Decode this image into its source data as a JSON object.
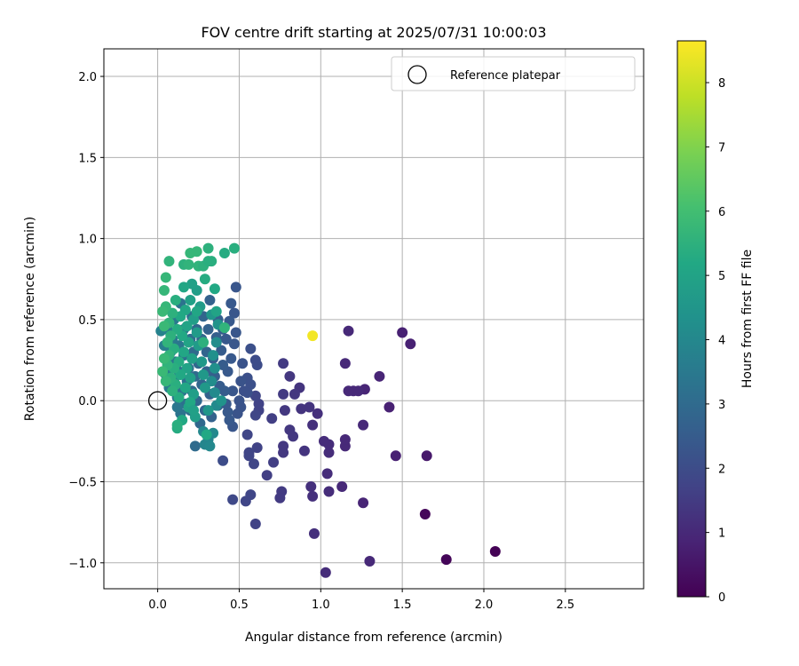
{
  "chart_data": {
    "type": "scatter",
    "title": "FOV centre drift starting at 2025/07/31 10:00:03",
    "xlabel": "Angular distance from reference (arcmin)",
    "ylabel": "Rotation from reference (arcmin)",
    "colorbar_label": "Hours from first FF file",
    "colormap": "viridis",
    "xlim": [
      -0.33,
      2.98
    ],
    "ylim": [
      -1.16,
      2.17
    ],
    "clim": [
      0,
      8.65
    ],
    "xticks": [
      "0.0",
      "0.5",
      "1.0",
      "1.5",
      "2.0",
      "2.5"
    ],
    "yticks": [
      "−1.0",
      "−0.5",
      "0.0",
      "0.5",
      "1.0",
      "1.5",
      "2.0"
    ],
    "cticks": [
      "0",
      "1",
      "2",
      "3",
      "4",
      "5",
      "6",
      "7",
      "8"
    ],
    "grid": true,
    "legend": {
      "placement": "top-right",
      "entries": [
        "Reference platepar"
      ]
    },
    "reference_point": {
      "x": 0.0,
      "y": 0.0
    },
    "points": [
      {
        "x": 2.07,
        "y": -0.93,
        "h": 0.02
      },
      {
        "x": 1.77,
        "y": -0.98,
        "h": 0.1
      },
      {
        "x": 1.64,
        "y": -0.7,
        "h": 0.15
      },
      {
        "x": 1.65,
        "y": -0.34,
        "h": 0.6
      },
      {
        "x": 1.5,
        "y": 0.42,
        "h": 0.8
      },
      {
        "x": 1.55,
        "y": 0.35,
        "h": 0.8
      },
      {
        "x": 1.46,
        "y": -0.34,
        "h": 0.8
      },
      {
        "x": 1.42,
        "y": -0.04,
        "h": 0.8
      },
      {
        "x": 1.36,
        "y": 0.15,
        "h": 0.9
      },
      {
        "x": 1.3,
        "y": -0.99,
        "h": 1.0
      },
      {
        "x": 1.27,
        "y": 0.07,
        "h": 0.9
      },
      {
        "x": 1.26,
        "y": -0.63,
        "h": 0.9
      },
      {
        "x": 1.26,
        "y": -0.15,
        "h": 1.0
      },
      {
        "x": 1.23,
        "y": 0.06,
        "h": 1.0
      },
      {
        "x": 1.2,
        "y": 0.06,
        "h": 1.0
      },
      {
        "x": 1.17,
        "y": 0.43,
        "h": 1.0
      },
      {
        "x": 1.17,
        "y": 0.06,
        "h": 1.0
      },
      {
        "x": 1.15,
        "y": 0.23,
        "h": 1.0
      },
      {
        "x": 1.15,
        "y": -0.28,
        "h": 1.0
      },
      {
        "x": 1.15,
        "y": -0.24,
        "h": 1.0
      },
      {
        "x": 1.13,
        "y": -0.53,
        "h": 1.0
      },
      {
        "x": 1.05,
        "y": -0.27,
        "h": 1.1
      },
      {
        "x": 1.05,
        "y": -0.32,
        "h": 1.1
      },
      {
        "x": 1.05,
        "y": -0.56,
        "h": 1.1
      },
      {
        "x": 1.04,
        "y": -0.45,
        "h": 1.1
      },
      {
        "x": 1.03,
        "y": -1.06,
        "h": 1.1
      },
      {
        "x": 1.02,
        "y": -0.25,
        "h": 1.1
      },
      {
        "x": 0.98,
        "y": -0.08,
        "h": 1.2
      },
      {
        "x": 0.96,
        "y": -0.82,
        "h": 1.2
      },
      {
        "x": 0.95,
        "y": -0.59,
        "h": 1.2
      },
      {
        "x": 0.95,
        "y": -0.15,
        "h": 1.2
      },
      {
        "x": 0.94,
        "y": -0.53,
        "h": 1.2
      },
      {
        "x": 0.95,
        "y": 0.4,
        "h": 8.5
      },
      {
        "x": 0.93,
        "y": -0.04,
        "h": 1.3
      },
      {
        "x": 0.9,
        "y": -0.31,
        "h": 1.3
      },
      {
        "x": 0.88,
        "y": -0.05,
        "h": 1.3
      },
      {
        "x": 0.87,
        "y": 0.08,
        "h": 1.3
      },
      {
        "x": 0.84,
        "y": 0.04,
        "h": 1.4
      },
      {
        "x": 0.83,
        "y": -0.22,
        "h": 1.4
      },
      {
        "x": 0.81,
        "y": -0.18,
        "h": 1.4
      },
      {
        "x": 0.81,
        "y": 0.15,
        "h": 1.4
      },
      {
        "x": 0.78,
        "y": -0.06,
        "h": 1.4
      },
      {
        "x": 0.77,
        "y": -0.32,
        "h": 1.4
      },
      {
        "x": 0.77,
        "y": -0.28,
        "h": 1.4
      },
      {
        "x": 0.77,
        "y": 0.04,
        "h": 1.5
      },
      {
        "x": 0.77,
        "y": 0.23,
        "h": 1.5
      },
      {
        "x": 0.76,
        "y": -0.56,
        "h": 1.5
      },
      {
        "x": 0.75,
        "y": -0.6,
        "h": 1.5
      },
      {
        "x": 0.71,
        "y": -0.38,
        "h": 1.6
      },
      {
        "x": 0.7,
        "y": -0.11,
        "h": 1.6
      },
      {
        "x": 0.67,
        "y": -0.46,
        "h": 1.6
      },
      {
        "x": 0.62,
        "y": -0.02,
        "h": 1.7
      },
      {
        "x": 0.62,
        "y": -0.06,
        "h": 1.7
      },
      {
        "x": 0.61,
        "y": -0.29,
        "h": 1.7
      },
      {
        "x": 0.6,
        "y": -0.76,
        "h": 1.7
      },
      {
        "x": 0.6,
        "y": -0.09,
        "h": 1.8
      },
      {
        "x": 0.6,
        "y": 0.03,
        "h": 1.8
      },
      {
        "x": 0.59,
        "y": -0.39,
        "h": 1.8
      },
      {
        "x": 0.57,
        "y": -0.58,
        "h": 1.8
      },
      {
        "x": 0.56,
        "y": -0.32,
        "h": 1.8
      },
      {
        "x": 0.56,
        "y": -0.34,
        "h": 1.8
      },
      {
        "x": 0.55,
        "y": -0.21,
        "h": 1.8
      },
      {
        "x": 0.54,
        "y": -0.62,
        "h": 1.8
      },
      {
        "x": 0.46,
        "y": -0.61,
        "h": 1.9
      },
      {
        "x": 0.4,
        "y": -0.37,
        "h": 2.0
      },
      {
        "x": 0.61,
        "y": 0.22,
        "h": 2.0
      },
      {
        "x": 0.6,
        "y": 0.25,
        "h": 2.0
      },
      {
        "x": 0.57,
        "y": 0.32,
        "h": 2.1
      },
      {
        "x": 0.57,
        "y": 0.1,
        "h": 2.1
      },
      {
        "x": 0.55,
        "y": 0.05,
        "h": 2.1
      },
      {
        "x": 0.55,
        "y": 0.14,
        "h": 2.1
      },
      {
        "x": 0.53,
        "y": 0.06,
        "h": 2.1
      },
      {
        "x": 0.52,
        "y": 0.23,
        "h": 2.2
      },
      {
        "x": 0.51,
        "y": 0.12,
        "h": 2.2
      },
      {
        "x": 0.51,
        "y": -0.04,
        "h": 2.2
      },
      {
        "x": 0.5,
        "y": 0.0,
        "h": 2.2
      },
      {
        "x": 0.49,
        "y": -0.08,
        "h": 2.2
      },
      {
        "x": 0.48,
        "y": 0.7,
        "h": 2.3
      },
      {
        "x": 0.48,
        "y": 0.42,
        "h": 2.3
      },
      {
        "x": 0.47,
        "y": 0.35,
        "h": 2.3
      },
      {
        "x": 0.47,
        "y": 0.54,
        "h": 2.3
      },
      {
        "x": 0.46,
        "y": 0.06,
        "h": 2.3
      },
      {
        "x": 0.46,
        "y": -0.16,
        "h": 2.3
      },
      {
        "x": 0.45,
        "y": 0.6,
        "h": 2.4
      },
      {
        "x": 0.45,
        "y": 0.26,
        "h": 2.4
      },
      {
        "x": 0.44,
        "y": 0.49,
        "h": 2.4
      },
      {
        "x": 0.44,
        "y": -0.12,
        "h": 2.4
      },
      {
        "x": 0.43,
        "y": 0.18,
        "h": 2.4
      },
      {
        "x": 0.43,
        "y": -0.07,
        "h": 2.4
      },
      {
        "x": 0.42,
        "y": 0.38,
        "h": 2.4
      },
      {
        "x": 0.42,
        "y": -0.02,
        "h": 2.4
      },
      {
        "x": 0.41,
        "y": 0.06,
        "h": 2.5
      },
      {
        "x": 0.4,
        "y": 0.44,
        "h": 2.5
      },
      {
        "x": 0.4,
        "y": 0.22,
        "h": 2.5
      },
      {
        "x": 0.39,
        "y": 0.31,
        "h": 2.5
      },
      {
        "x": 0.38,
        "y": 0.09,
        "h": 2.5
      },
      {
        "x": 0.37,
        "y": 0.5,
        "h": 2.6
      },
      {
        "x": 0.37,
        "y": -0.03,
        "h": 2.6
      },
      {
        "x": 0.36,
        "y": 0.39,
        "h": 2.6
      },
      {
        "x": 0.35,
        "y": 0.15,
        "h": 2.6
      },
      {
        "x": 0.34,
        "y": 0.26,
        "h": 2.6
      },
      {
        "x": 0.33,
        "y": -0.1,
        "h": 2.7
      },
      {
        "x": 0.32,
        "y": 0.62,
        "h": 2.7
      },
      {
        "x": 0.32,
        "y": 0.04,
        "h": 2.7
      },
      {
        "x": 0.31,
        "y": 0.44,
        "h": 2.7
      },
      {
        "x": 0.3,
        "y": 0.18,
        "h": 2.7
      },
      {
        "x": 0.3,
        "y": 0.3,
        "h": 2.8
      },
      {
        "x": 0.29,
        "y": -0.06,
        "h": 2.8
      },
      {
        "x": 0.28,
        "y": 0.52,
        "h": 2.8
      },
      {
        "x": 0.27,
        "y": 0.1,
        "h": 2.8
      },
      {
        "x": 0.27,
        "y": 0.38,
        "h": 2.8
      },
      {
        "x": 0.26,
        "y": -0.14,
        "h": 2.9
      },
      {
        "x": 0.25,
        "y": 0.23,
        "h": 2.9
      },
      {
        "x": 0.24,
        "y": 0.0,
        "h": 2.9
      },
      {
        "x": 0.24,
        "y": 0.44,
        "h": 2.9
      },
      {
        "x": 0.23,
        "y": 0.15,
        "h": 3.0
      },
      {
        "x": 0.23,
        "y": -0.28,
        "h": 3.0
      },
      {
        "x": 0.22,
        "y": 0.3,
        "h": 3.0
      },
      {
        "x": 0.21,
        "y": 0.06,
        "h": 3.0
      },
      {
        "x": 0.21,
        "y": 0.52,
        "h": 3.1
      },
      {
        "x": 0.2,
        "y": -0.06,
        "h": 3.1
      },
      {
        "x": 0.2,
        "y": 0.38,
        "h": 3.1
      },
      {
        "x": 0.19,
        "y": 0.2,
        "h": 3.1
      },
      {
        "x": 0.18,
        "y": 0.12,
        "h": 3.2
      },
      {
        "x": 0.17,
        "y": -0.02,
        "h": 3.2
      },
      {
        "x": 0.16,
        "y": 0.44,
        "h": 3.2
      },
      {
        "x": 0.16,
        "y": 0.28,
        "h": 3.2
      },
      {
        "x": 0.15,
        "y": 0.06,
        "h": 3.3
      },
      {
        "x": 0.14,
        "y": -0.08,
        "h": 3.3
      },
      {
        "x": 0.14,
        "y": 0.6,
        "h": 3.3
      },
      {
        "x": 0.13,
        "y": 0.18,
        "h": 3.3
      },
      {
        "x": 0.13,
        "y": 0.34,
        "h": 3.4
      },
      {
        "x": 0.12,
        "y": 0.02,
        "h": 3.4
      },
      {
        "x": 0.12,
        "y": -0.04,
        "h": 3.4
      },
      {
        "x": 0.11,
        "y": 0.24,
        "h": 3.4
      },
      {
        "x": 0.1,
        "y": 0.5,
        "h": 3.5
      },
      {
        "x": 0.1,
        "y": 0.12,
        "h": 3.5
      },
      {
        "x": 0.09,
        "y": 0.38,
        "h": 3.5
      },
      {
        "x": 0.08,
        "y": 0.2,
        "h": 3.5
      },
      {
        "x": 0.08,
        "y": 0.3,
        "h": 3.6
      },
      {
        "x": 0.07,
        "y": 0.08,
        "h": 3.6
      },
      {
        "x": 0.06,
        "y": 0.44,
        "h": 3.6
      },
      {
        "x": 0.06,
        "y": 0.26,
        "h": 3.6
      },
      {
        "x": 0.05,
        "y": 0.16,
        "h": 3.7
      },
      {
        "x": 0.04,
        "y": 0.34,
        "h": 3.7
      },
      {
        "x": 0.02,
        "y": 0.43,
        "h": 3.8
      },
      {
        "x": 0.31,
        "y": -0.24,
        "h": 3.9
      },
      {
        "x": 0.29,
        "y": -0.27,
        "h": 3.9
      },
      {
        "x": 0.34,
        "y": -0.2,
        "h": 4.0
      },
      {
        "x": 0.32,
        "y": -0.28,
        "h": 4.0
      },
      {
        "x": 0.28,
        "y": -0.19,
        "h": 4.0
      },
      {
        "x": 0.36,
        "y": -0.03,
        "h": 4.1
      },
      {
        "x": 0.35,
        "y": 0.05,
        "h": 4.1
      },
      {
        "x": 0.33,
        "y": 0.12,
        "h": 4.2
      },
      {
        "x": 0.36,
        "y": 0.36,
        "h": 4.2
      },
      {
        "x": 0.35,
        "y": 0.2,
        "h": 4.3
      },
      {
        "x": 0.34,
        "y": 0.28,
        "h": 4.3
      },
      {
        "x": 0.39,
        "y": 0.0,
        "h": 4.4
      },
      {
        "x": 0.37,
        "y": 0.47,
        "h": 4.4
      },
      {
        "x": 0.33,
        "y": 0.53,
        "h": 4.5
      },
      {
        "x": 0.31,
        "y": -0.06,
        "h": 4.5
      },
      {
        "x": 0.29,
        "y": 0.08,
        "h": 4.6
      },
      {
        "x": 0.28,
        "y": 0.16,
        "h": 4.6
      },
      {
        "x": 0.27,
        "y": 0.24,
        "h": 4.6
      },
      {
        "x": 0.26,
        "y": 0.58,
        "h": 4.7
      },
      {
        "x": 0.25,
        "y": 0.34,
        "h": 4.7
      },
      {
        "x": 0.24,
        "y": 0.42,
        "h": 4.7
      },
      {
        "x": 0.24,
        "y": 0.68,
        "h": 4.8
      },
      {
        "x": 0.23,
        "y": -0.1,
        "h": 4.8
      },
      {
        "x": 0.22,
        "y": 0.5,
        "h": 4.8
      },
      {
        "x": 0.22,
        "y": 0.04,
        "h": 4.8
      },
      {
        "x": 0.21,
        "y": 0.26,
        "h": 4.9
      },
      {
        "x": 0.21,
        "y": 0.72,
        "h": 4.9
      },
      {
        "x": 0.2,
        "y": 0.14,
        "h": 4.9
      },
      {
        "x": 0.2,
        "y": 0.62,
        "h": 4.9
      },
      {
        "x": 0.19,
        "y": 0.36,
        "h": 5.0
      },
      {
        "x": 0.19,
        "y": -0.04,
        "h": 5.0
      },
      {
        "x": 0.18,
        "y": 0.46,
        "h": 5.0
      },
      {
        "x": 0.18,
        "y": 0.2,
        "h": 5.0
      },
      {
        "x": 0.17,
        "y": 0.56,
        "h": 5.1
      },
      {
        "x": 0.17,
        "y": 0.08,
        "h": 5.1
      },
      {
        "x": 0.16,
        "y": 0.7,
        "h": 5.1
      },
      {
        "x": 0.16,
        "y": 0.3,
        "h": 5.1
      },
      {
        "x": 0.15,
        "y": 0.4,
        "h": 5.2
      },
      {
        "x": 0.15,
        "y": -0.12,
        "h": 5.2
      },
      {
        "x": 0.14,
        "y": 0.16,
        "h": 5.2
      },
      {
        "x": 0.14,
        "y": 0.52,
        "h": 5.2
      },
      {
        "x": 0.13,
        "y": 0.24,
        "h": 5.3
      },
      {
        "x": 0.13,
        "y": 0.02,
        "h": 5.3
      },
      {
        "x": 0.12,
        "y": 0.44,
        "h": 5.3
      },
      {
        "x": 0.12,
        "y": -0.17,
        "h": 5.3
      },
      {
        "x": 0.11,
        "y": 0.62,
        "h": 5.4
      },
      {
        "x": 0.11,
        "y": 0.1,
        "h": 5.4
      },
      {
        "x": 0.1,
        "y": 0.32,
        "h": 5.4
      },
      {
        "x": 0.1,
        "y": 0.2,
        "h": 5.4
      },
      {
        "x": 0.09,
        "y": 0.54,
        "h": 5.5
      },
      {
        "x": 0.09,
        "y": 0.06,
        "h": 5.5
      },
      {
        "x": 0.08,
        "y": 0.4,
        "h": 5.5
      },
      {
        "x": 0.08,
        "y": 0.14,
        "h": 5.5
      },
      {
        "x": 0.07,
        "y": 0.28,
        "h": 5.6
      },
      {
        "x": 0.07,
        "y": 0.48,
        "h": 5.6
      },
      {
        "x": 0.06,
        "y": 0.22,
        "h": 5.6
      },
      {
        "x": 0.06,
        "y": 0.36,
        "h": 5.6
      },
      {
        "x": 0.05,
        "y": 0.76,
        "h": 5.7
      },
      {
        "x": 0.05,
        "y": 0.58,
        "h": 5.7
      },
      {
        "x": 0.05,
        "y": 0.12,
        "h": 5.7
      },
      {
        "x": 0.04,
        "y": 0.68,
        "h": 5.7
      },
      {
        "x": 0.04,
        "y": 0.46,
        "h": 5.8
      },
      {
        "x": 0.04,
        "y": 0.26,
        "h": 5.8
      },
      {
        "x": 0.03,
        "y": 0.55,
        "h": 5.8
      },
      {
        "x": 0.03,
        "y": 0.18,
        "h": 5.8
      },
      {
        "x": 0.12,
        "y": -0.15,
        "h": 5.4
      },
      {
        "x": 0.2,
        "y": -0.01,
        "h": 5.2
      },
      {
        "x": 0.16,
        "y": 0.84,
        "h": 5.5
      },
      {
        "x": 0.19,
        "y": 0.84,
        "h": 5.6
      },
      {
        "x": 0.2,
        "y": 0.91,
        "h": 5.7
      },
      {
        "x": 0.24,
        "y": 0.92,
        "h": 5.7
      },
      {
        "x": 0.25,
        "y": 0.83,
        "h": 5.6
      },
      {
        "x": 0.28,
        "y": 0.83,
        "h": 5.5
      },
      {
        "x": 0.31,
        "y": 0.86,
        "h": 5.4
      },
      {
        "x": 0.31,
        "y": 0.94,
        "h": 5.5
      },
      {
        "x": 0.33,
        "y": 0.86,
        "h": 5.4
      },
      {
        "x": 0.07,
        "y": 0.86,
        "h": 5.6
      },
      {
        "x": 0.41,
        "y": 0.91,
        "h": 5.3
      },
      {
        "x": 0.47,
        "y": 0.94,
        "h": 5.4
      },
      {
        "x": 0.35,
        "y": 0.69,
        "h": 5.2
      },
      {
        "x": 0.29,
        "y": 0.75,
        "h": 5.3
      },
      {
        "x": 0.24,
        "y": 0.55,
        "h": 5.1
      },
      {
        "x": 0.36,
        "y": 0.55,
        "h": 5.0
      },
      {
        "x": 0.41,
        "y": 0.45,
        "h": 5.6
      },
      {
        "x": 0.28,
        "y": 0.36,
        "h": 5.5
      },
      {
        "x": 0.3,
        "y": -0.21,
        "h": 5.2
      },
      {
        "x": 0.22,
        "y": -0.06,
        "h": 4.9
      }
    ]
  }
}
